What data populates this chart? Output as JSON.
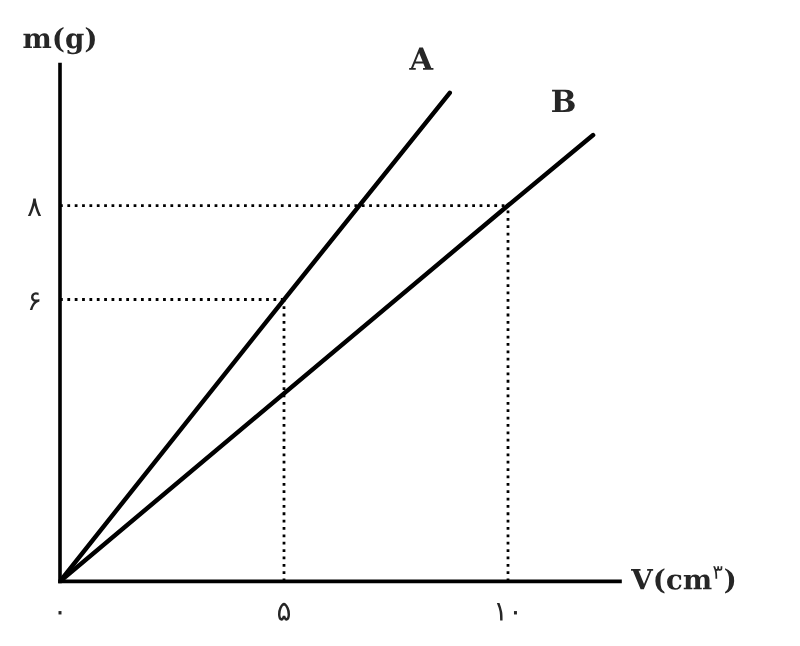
{
  "chart_data": {
    "type": "line",
    "xlabel": "V(cm$^{۳}$)",
    "ylabel": "m(g)",
    "series": [
      {
        "name": "A",
        "color": "#000000",
        "x": [
          0,
          5,
          8.7
        ],
        "values": [
          0,
          6,
          10.4
        ]
      },
      {
        "name": "B",
        "color": "#000000",
        "x": [
          0,
          10,
          11.9
        ],
        "values": [
          0,
          8,
          9.5
        ]
      }
    ],
    "xlim": [
      0,
      12.5
    ],
    "ylim": [
      0,
      11
    ],
    "xticks": [
      {
        "value": 0,
        "label": "۰"
      },
      {
        "value": 5,
        "label": "۵"
      },
      {
        "value": 10,
        "label": "۱۰"
      }
    ],
    "yticks": [
      {
        "value": 6,
        "label": "۶"
      },
      {
        "value": 8,
        "label": "۸"
      }
    ],
    "ref_lines": [
      {
        "axis": "x",
        "value": 5,
        "line_style": "dotted",
        "color": "#000000"
      },
      {
        "axis": "y",
        "value": 6,
        "line_style": "dotted",
        "color": "#000000"
      },
      {
        "axis": "x",
        "value": 10,
        "line_style": "dotted",
        "color": "#000000"
      },
      {
        "axis": "y",
        "value": 8,
        "line_style": "dotted",
        "color": "#000000"
      }
    ],
    "grid": false,
    "legend": false,
    "marker": "none",
    "line_style": "solid"
  }
}
